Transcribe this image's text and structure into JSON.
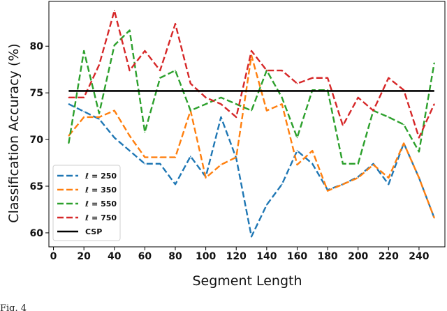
{
  "chart_data": {
    "type": "line",
    "title": "",
    "xlabel": "Segment Length",
    "ylabel": "Classification Accuracy (%)",
    "xlim": [
      -3,
      257
    ],
    "ylim": [
      58.5,
      84.8
    ],
    "xticks": [
      0,
      20,
      40,
      60,
      80,
      100,
      120,
      140,
      160,
      180,
      200,
      220,
      240
    ],
    "yticks": [
      60,
      65,
      70,
      75,
      80
    ],
    "grid": false,
    "legend_position": "bottom-left",
    "x": [
      10,
      20,
      30,
      40,
      50,
      60,
      70,
      80,
      90,
      100,
      110,
      120,
      130,
      140,
      150,
      160,
      170,
      180,
      190,
      200,
      210,
      220,
      230,
      240,
      250
    ],
    "series": [
      {
        "name": "ℓ = 250",
        "color": "#1f77b4",
        "dash": "dashed",
        "values": [
          73.8,
          73.0,
          72.2,
          70.2,
          68.8,
          67.4,
          67.4,
          65.2,
          68.2,
          66.0,
          72.4,
          68.0,
          59.6,
          63.0,
          65.2,
          68.8,
          67.4,
          64.6,
          65.2,
          66.0,
          67.4,
          65.2,
          69.6,
          65.9,
          61.6
        ]
      },
      {
        "name": "ℓ = 350",
        "color": "#ff7f0e",
        "dash": "dashed",
        "values": [
          70.4,
          72.4,
          72.4,
          73.1,
          70.4,
          68.1,
          68.1,
          68.1,
          73.1,
          65.9,
          67.3,
          68.1,
          79.0,
          73.1,
          73.8,
          67.3,
          68.8,
          64.5,
          65.2,
          65.9,
          67.3,
          65.9,
          69.6,
          65.9,
          61.6
        ]
      },
      {
        "name": "ℓ = 550",
        "color": "#2ca02c",
        "dash": "dashed",
        "values": [
          69.6,
          79.5,
          72.8,
          80.1,
          81.7,
          70.8,
          76.6,
          77.4,
          73.1,
          73.8,
          74.5,
          73.8,
          73.1,
          77.4,
          74.5,
          70.2,
          75.3,
          75.3,
          67.4,
          67.4,
          73.1,
          72.4,
          71.6,
          68.7,
          78.2
        ]
      },
      {
        "name": "ℓ = 750",
        "color": "#d62728",
        "dash": "dashed",
        "values": [
          74.5,
          74.5,
          78.0,
          83.8,
          77.4,
          79.5,
          77.4,
          82.4,
          76.0,
          74.5,
          73.8,
          72.4,
          79.5,
          77.4,
          77.4,
          76.0,
          76.6,
          76.6,
          71.5,
          74.5,
          73.1,
          76.6,
          75.3,
          70.2,
          73.8
        ]
      },
      {
        "name": "CSP",
        "color": "#000000",
        "dash": "solid",
        "constant": 75.2,
        "x_range": [
          10,
          250
        ]
      }
    ]
  },
  "caption": "Fig. 4"
}
